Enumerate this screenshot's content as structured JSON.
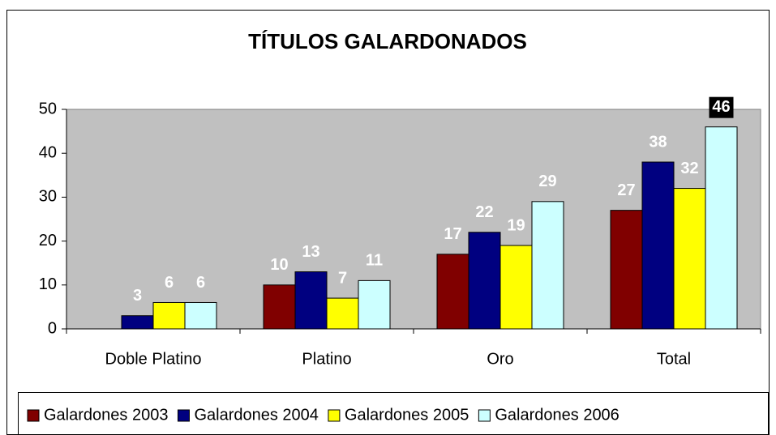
{
  "chart_data": {
    "type": "bar",
    "title": "TÍTULOS GALARDONADOS",
    "categories": [
      "Doble Platino",
      "Platino",
      "Oro",
      "Total"
    ],
    "series": [
      {
        "name": "Galardones 2003",
        "color": "#800000",
        "values": [
          null,
          10,
          17,
          27
        ]
      },
      {
        "name": "Galardones 2004",
        "color": "#000080",
        "values": [
          3,
          13,
          22,
          38
        ]
      },
      {
        "name": "Galardones 2005",
        "color": "#ffff00",
        "values": [
          6,
          7,
          19,
          32
        ]
      },
      {
        "name": "Galardones 2006",
        "color": "#ccffff",
        "values": [
          6,
          11,
          29,
          46
        ]
      }
    ],
    "ylim": [
      0,
      50
    ],
    "yticks": [
      0,
      10,
      20,
      30,
      40,
      50
    ],
    "legend": "bottom"
  }
}
